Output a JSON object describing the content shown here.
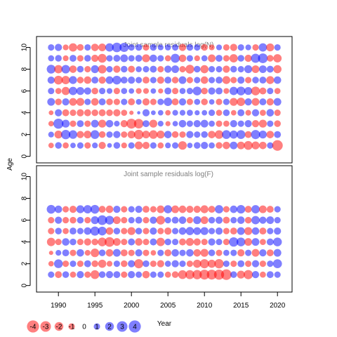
{
  "chart_data": {
    "type": "scatter",
    "ylabel": "Age",
    "xlabel": "Year",
    "x_ticks": [
      1990,
      1995,
      2000,
      2005,
      2010,
      2015,
      2020
    ],
    "xlim": [
      1987,
      2022
    ],
    "colors": {
      "negative": "#FF0000",
      "positive": "#0000FF",
      "alpha": 0.5
    },
    "legend": {
      "values": [
        -4,
        -3,
        -2,
        -1,
        0,
        1,
        2,
        3,
        4
      ],
      "labels": [
        "-4",
        "-3",
        "-2",
        "-1",
        "0",
        "1",
        "2",
        "3",
        "4"
      ]
    },
    "panels": [
      {
        "title": "Joint sample residuals log(N)",
        "ylim": [
          -0.6,
          11
        ],
        "y_ticks": [
          0,
          2,
          4,
          6,
          8,
          10
        ],
        "years": [
          1989,
          1990,
          1991,
          1992,
          1993,
          1994,
          1995,
          1996,
          1997,
          1998,
          1999,
          2000,
          2001,
          2002,
          2003,
          2004,
          2005,
          2006,
          2007,
          2008,
          2009,
          2010,
          2011,
          2012,
          2013,
          2014,
          2015,
          2016,
          2017,
          2018,
          2019,
          2020
        ],
        "ages": [
          1,
          2,
          3,
          4,
          5,
          6,
          7,
          8,
          9,
          10
        ],
        "residuals": [
          [
            -0.7,
            1.1,
            -0.9,
            0.7,
            1.0,
            -1.0,
            0.8,
            -1.3,
            0.5,
            1.1,
            -0.8,
            1.0,
            -1.6,
            -1.3,
            1.0,
            -0.9,
            0.8,
            1.0,
            -1.9,
            0.7,
            1.1,
            1.3,
            0.9,
            -1.1,
            -1.4,
            1.5,
            -1.5,
            -2.0,
            -1.6,
            -1.4,
            1.0,
            -3.0
          ],
          [
            0.8,
            -1.6,
            2.3,
            1.9,
            -1.3,
            -1.5,
            2.0,
            -1.1,
            1.0,
            1.3,
            -1.0,
            -1.5,
            -2.4,
            -1.5,
            -1.9,
            -1.6,
            1.4,
            -1.1,
            -1.0,
            1.3,
            1.0,
            1.1,
            -1.4,
            -1.9,
            2.0,
            1.7,
            2.0,
            -1.2,
            2.2,
            1.6,
            -1.4,
            1.2
          ],
          [
            -0.7,
            2.7,
            1.6,
            -1.0,
            1.2,
            -1.0,
            1.5,
            -1.6,
            1.4,
            0.8,
            -1.3,
            -2.6,
            -2.4,
            1.2,
            -1.6,
            0.8,
            -0.6,
            0.7,
            1.4,
            1.0,
            1.3,
            1.5,
            0.9,
            -1.0,
            -0.9,
            1.3,
            1.0,
            1.3,
            -1.3,
            -1.6,
            1.0,
            -1.1
          ],
          [
            -0.5,
            1.3,
            -1.2,
            -1.0,
            -1.3,
            -1.2,
            -1.1,
            -1.2,
            -1.1,
            -1.3,
            -0.9,
            -0.4,
            0.2,
            1.3,
            0.5,
            0.7,
            -0.7,
            0.8,
            0.8,
            0.9,
            0.6,
            0.7,
            1.0,
            -0.9,
            1.1,
            -0.7,
            1.2,
            -0.8,
            1.3,
            -0.9,
            1.4,
            -1.0
          ],
          [
            1.5,
            -1.1,
            1.3,
            -1.5,
            -1.6,
            1.0,
            -1.4,
            1.2,
            -1.1,
            -1.0,
            1.0,
            -1.2,
            0.8,
            -1.3,
            -1.0,
            1.0,
            1.8,
            -1.2,
            1.3,
            -1.0,
            0.9,
            -1.1,
            0.7,
            -1.0,
            1.0,
            -1.6,
            -1.8,
            1.3,
            -1.5,
            1.2,
            -1.3,
            1.5
          ],
          [
            1.0,
            -0.9,
            -1.7,
            1.8,
            1.6,
            1.3,
            -1.1,
            1.0,
            0.8,
            -1.0,
            0.9,
            0.7,
            -0.8,
            -0.8,
            0.7,
            -0.6,
            1.2,
            -1.0,
            0.9,
            1.0,
            2.0,
            -1.1,
            1.3,
            1.2,
            -0.8,
            1.8,
            2.0,
            1.6,
            -2.0,
            -1.2,
            1.0,
            -0.9
          ],
          [
            1.3,
            -2.0,
            -1.8,
            1.6,
            -1.1,
            -1.4,
            1.2,
            -1.3,
            1.5,
            2.0,
            1.2,
            1.3,
            1.0,
            -1.2,
            1.0,
            -1.3,
            1.2,
            -1.1,
            1.5,
            -1.0,
            1.0,
            -1.4,
            1.0,
            1.2,
            -1.6,
            -1.0,
            1.3,
            -1.0,
            1.1,
            1.2,
            -1.6,
            1.4
          ],
          [
            2.0,
            -1.8,
            1.9,
            -1.4,
            1.1,
            -1.0,
            1.6,
            -1.9,
            1.0,
            -1.3,
            1.1,
            -1.2,
            0.9,
            1.0,
            1.2,
            -1.0,
            1.3,
            1.5,
            -1.0,
            -2.0,
            1.1,
            -1.7,
            1.0,
            1.0,
            -1.3,
            1.1,
            1.0,
            1.6,
            -1.5,
            1.5,
            1.2,
            -1.7
          ],
          [
            0.9,
            1.1,
            -0.8,
            1.2,
            -1.0,
            1.1,
            -1.3,
            -2.0,
            1.0,
            1.2,
            1.5,
            1.0,
            1.2,
            -1.6,
            1.4,
            1.0,
            -0.9,
            2.1,
            -1.4,
            1.0,
            -0.8,
            0.9,
            -1.5,
            1.2,
            -1.0,
            -1.8,
            1.1,
            -1.3,
            2.2,
            2.5,
            -1.1,
            -1.8
          ],
          [
            1.0,
            1.3,
            -0.8,
            -1.8,
            -1.1,
            1.0,
            -1.4,
            -1.5,
            1.8,
            2.4,
            2.2,
            1.0,
            1.1,
            -1.0,
            1.1,
            0.8,
            0.9,
            1.0,
            -1.3,
            1.1,
            1.0,
            -1.1,
            -0.8,
            0.8,
            -1.0,
            -1.3,
            1.0,
            0.8,
            -1.0,
            1.8,
            -1.6,
            1.0
          ]
        ]
      },
      {
        "title": "Joint sample residuals log(F)",
        "ylim": [
          -0.6,
          11
        ],
        "y_ticks": [
          0,
          2,
          4,
          6,
          8,
          10
        ],
        "years": [
          1989,
          1990,
          1991,
          1992,
          1993,
          1994,
          1995,
          1996,
          1997,
          1998,
          1999,
          2000,
          2001,
          2002,
          2003,
          2004,
          2005,
          2006,
          2007,
          2008,
          2009,
          2010,
          2011,
          2012,
          2013,
          2014,
          2015,
          2016,
          2017,
          2018,
          2019,
          2020
        ],
        "ages": [
          1,
          2,
          3,
          4,
          5,
          6,
          7
        ],
        "residuals": [
          [
            1.0,
            -1.2,
            1.1,
            -0.9,
            1.3,
            -1.0,
            -2.0,
            1.1,
            1.3,
            1.2,
            -1.0,
            1.3,
            1.0,
            -1.4,
            1.0,
            1.0,
            -0.9,
            -1.1,
            -2.0,
            -2.1,
            -2.3,
            -2.6,
            -2.6,
            -2.7,
            -3.0,
            1.1,
            -1.6,
            -2.2,
            1.3,
            -0.9,
            1.2,
            1.0
          ],
          [
            -0.7,
            2.0,
            -1.0,
            1.0,
            -1.0,
            1.2,
            -1.1,
            -1.7,
            -0.8,
            1.0,
            -1.1,
            1.3,
            -2.2,
            1.1,
            -1.0,
            -1.3,
            0.9,
            1.3,
            1.0,
            -1.0,
            -1.7,
            -2.2,
            -1.7,
            -2.3,
            1.0,
            -1.0,
            1.2,
            -1.0,
            1.3,
            -1.0,
            1.0,
            2.1
          ],
          [
            -0.4,
            0.8,
            1.2,
            -1.0,
            1.4,
            -0.8,
            -1.9,
            1.1,
            -1.4,
            1.5,
            -1.2,
            -1.0,
            1.3,
            -1.0,
            -0.7,
            1.0,
            -1.2,
            1.4,
            1.0,
            1.4,
            -1.4,
            -1.6,
            1.1,
            -1.0,
            0.9,
            1.0,
            -1.3,
            1.0,
            -1.5,
            1.3,
            -1.2,
            1.5
          ],
          [
            -1.8,
            -1.0,
            1.4,
            1.1,
            -1.0,
            -1.3,
            -1.1,
            -2.0,
            -2.5,
            -1.5,
            -1.0,
            1.2,
            -1.4,
            -1.0,
            1.2,
            -1.8,
            1.1,
            1.0,
            -1.2,
            -1.6,
            -1.3,
            -1.0,
            1.3,
            1.0,
            -1.0,
            2.3,
            2.0,
            -1.5,
            1.5,
            -0.9,
            1.2,
            2.0
          ],
          [
            -1.0,
            1.1,
            -0.9,
            1.2,
            1.0,
            1.4,
            2.2,
            2.0,
            -1.4,
            1.1,
            -1.0,
            -1.6,
            1.1,
            -1.0,
            1.3,
            -1.0,
            -1.3,
            1.0,
            1.4,
            1.7,
            1.5,
            1.6,
            1.0,
            1.3,
            -1.0,
            -1.2,
            1.5,
            -1.6,
            1.4,
            -1.2,
            1.0,
            1.3
          ],
          [
            -1.0,
            1.3,
            -1.0,
            -1.1,
            1.1,
            -1.0,
            1.6,
            2.5,
            2.0,
            -1.5,
            -1.0,
            1.0,
            1.2,
            -1.0,
            1.3,
            -2.0,
            1.0,
            1.2,
            1.4,
            -1.0,
            1.6,
            -1.5,
            1.1,
            1.3,
            -1.2,
            1.0,
            1.4,
            -1.1,
            1.8,
            1.3,
            1.5,
            1.0
          ],
          [
            2.0,
            1.4,
            -1.0,
            -1.3,
            1.6,
            1.8,
            2.0,
            -1.2,
            -1.4,
            1.3,
            -1.0,
            1.0,
            1.3,
            -1.2,
            -1.0,
            -1.5,
            1.7,
            -1.5,
            -1.4,
            -1.3,
            -1.3,
            -1.6,
            -1.2,
            1.8,
            -1.0,
            1.4,
            1.9,
            -1.2,
            1.8,
            -1.5,
            -1.2,
            1.0
          ]
        ]
      }
    ]
  }
}
